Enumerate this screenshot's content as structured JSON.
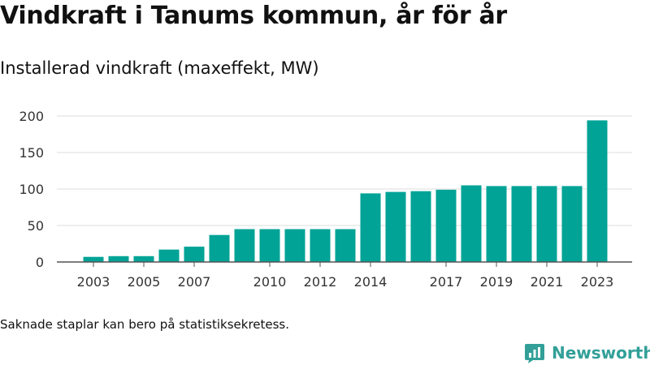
{
  "header": {
    "title": "Vindkraft i Tanums kommun, år för år",
    "subtitle": "Installerad vindkraft (maxeffekt, MW)"
  },
  "footer": {
    "note": "Saknade staplar kan bero på statistiksekretess.",
    "brand": "Newsworthy",
    "brand_icon": "chart-bubble-icon"
  },
  "colors": {
    "bar": "#00a396",
    "grid": "#dddddd",
    "axis": "#555555",
    "brand": "#32a098"
  },
  "chart_data": {
    "type": "bar",
    "title": "Vindkraft i Tanums kommun, år för år",
    "subtitle": "Installerad vindkraft (maxeffekt, MW)",
    "categories": [
      "2003",
      "2004",
      "2005",
      "2006",
      "2007",
      "2008",
      "2009",
      "2010",
      "2011",
      "2012",
      "2013",
      "2014",
      "2015",
      "2016",
      "2017",
      "2018",
      "2019",
      "2020",
      "2021",
      "2022",
      "2023"
    ],
    "x_tick_labels": [
      "2003",
      "2005",
      "2007",
      "2010",
      "2012",
      "2014",
      "2017",
      "2019",
      "2021",
      "2023"
    ],
    "values": [
      7,
      8,
      8,
      17,
      21,
      37,
      45,
      45,
      45,
      45,
      45,
      94,
      96,
      97,
      99,
      105,
      104,
      104,
      104,
      104,
      194
    ],
    "y_ticks": [
      0,
      50,
      100,
      150,
      200
    ],
    "ylim": [
      0,
      200
    ],
    "xlabel": "",
    "ylabel": "",
    "grid": true,
    "legend": "none"
  }
}
